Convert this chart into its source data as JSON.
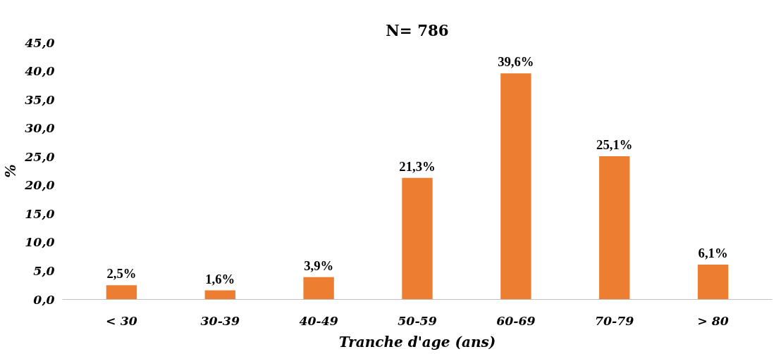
{
  "chart_data": {
    "type": "bar",
    "title": "N= 786",
    "xlabel": "Tranche d'age (ans)",
    "ylabel": "%",
    "categories": [
      "< 30",
      "30-39",
      "40-49",
      "50-59",
      "60-69",
      "70-79",
      "> 80"
    ],
    "values": [
      2.5,
      1.6,
      3.9,
      21.3,
      39.6,
      25.1,
      6.1
    ],
    "value_labels": [
      "2,5%",
      "1,6%",
      "3,9%",
      "21,3%",
      "39,6%",
      "25,1%",
      "6,1%"
    ],
    "color": "#ed7d31",
    "ylim": [
      0,
      45
    ],
    "yticks": [
      {
        "value": 0,
        "label": "0,0"
      },
      {
        "value": 5,
        "label": "5,0"
      },
      {
        "value": 10,
        "label": "10,0"
      },
      {
        "value": 15,
        "label": "15,0"
      },
      {
        "value": 20,
        "label": "20,0"
      },
      {
        "value": 25,
        "label": "25,0"
      },
      {
        "value": 30,
        "label": "30,0"
      },
      {
        "value": 35,
        "label": "35,0"
      },
      {
        "value": 40,
        "label": "40,0"
      },
      {
        "value": 45,
        "label": "45,0"
      }
    ],
    "grid": false
  }
}
